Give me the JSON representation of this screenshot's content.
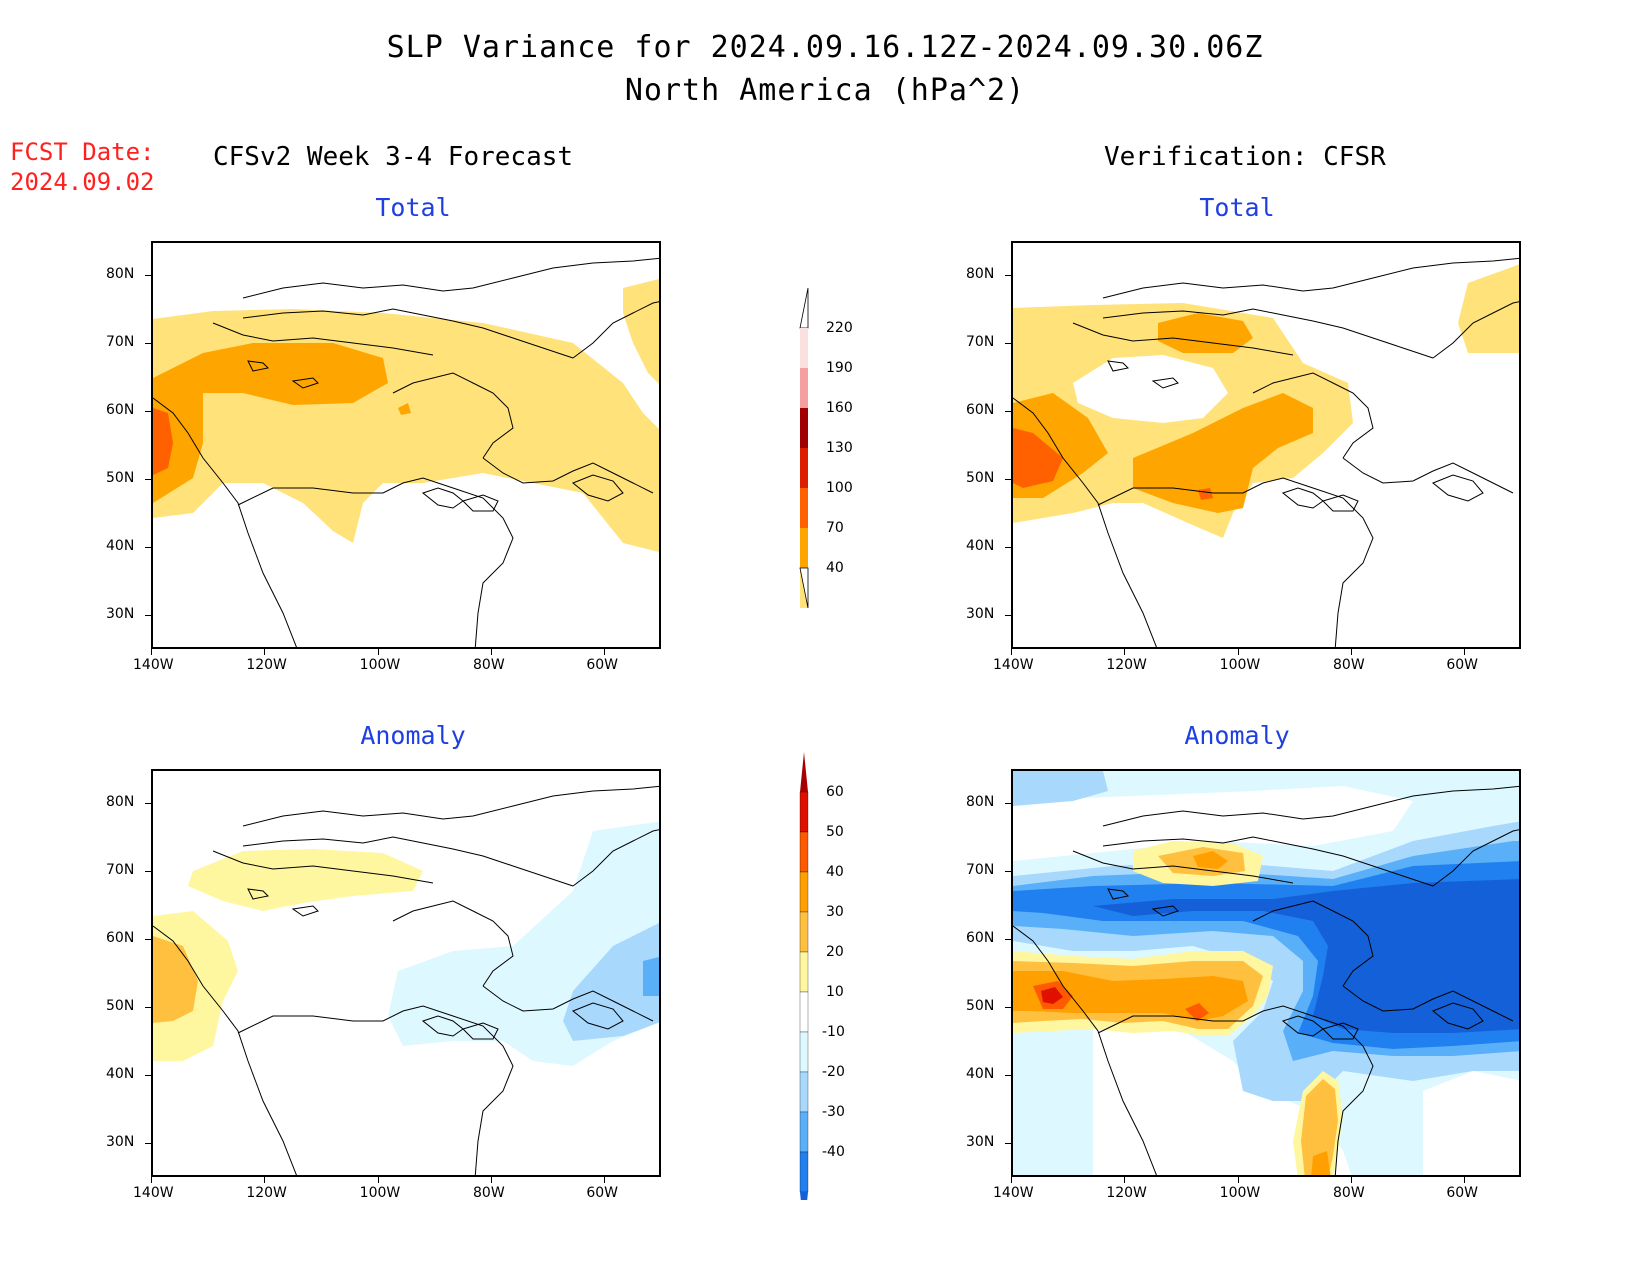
{
  "title": {
    "line1": "SLP Variance for 2024.09.16.12Z-2024.09.30.06Z",
    "line2": "North America (hPa^2)"
  },
  "fcst": {
    "label": "FCST Date:",
    "date": "2024.09.02"
  },
  "left_header": "CFSv2 Week 3-4 Forecast",
  "right_header": "Verification: CFSR",
  "panels": {
    "fc_total": {
      "subtitle": "Total"
    },
    "fc_anom": {
      "subtitle": "Anomaly"
    },
    "ver_total": {
      "subtitle": "Total"
    },
    "ver_anom": {
      "subtitle": "Anomaly"
    }
  },
  "axes": {
    "lat_labels": [
      "80N",
      "70N",
      "60N",
      "50N",
      "40N",
      "30N"
    ],
    "lon_labels": [
      "140W",
      "120W",
      "100W",
      "80W",
      "60W"
    ],
    "lat_range": [
      25,
      85
    ],
    "lon_range": [
      -140,
      -50
    ]
  },
  "total_colorbar": {
    "levels": [
      "220",
      "190",
      "160",
      "130",
      "100",
      "70",
      "40"
    ],
    "colors": [
      "#fbe0e0",
      "#f4a0a0",
      "#a00000",
      "#dd1d00",
      "#ff6000",
      "#ffa500",
      "#ffe27a"
    ]
  },
  "anom_colorbar": {
    "levels": [
      "60",
      "50",
      "40",
      "30",
      "20",
      "10",
      "-10",
      "-20",
      "-30",
      "-40"
    ],
    "colors": [
      "#a80000",
      "#e01000",
      "#ff5a00",
      "#ffa000",
      "#ffc040",
      "#fff6a0",
      "#ffffff",
      "#def8ff",
      "#a8d8fc",
      "#5ab0f8",
      "#2080f0",
      "#1460d8"
    ]
  },
  "map_colors": {
    "light_yellow": "#ffe27a",
    "orange": "#ffa500",
    "dark_orange": "#ff6000",
    "red": "#dd1d00",
    "pale_yellow": "#fff6a0",
    "yellow_orange": "#ffc040",
    "pale_cyan": "#def8ff",
    "light_blue": "#a8d8fc",
    "mid_blue": "#5ab0f8",
    "blue": "#2080f0",
    "dark_blue": "#1460d8"
  }
}
